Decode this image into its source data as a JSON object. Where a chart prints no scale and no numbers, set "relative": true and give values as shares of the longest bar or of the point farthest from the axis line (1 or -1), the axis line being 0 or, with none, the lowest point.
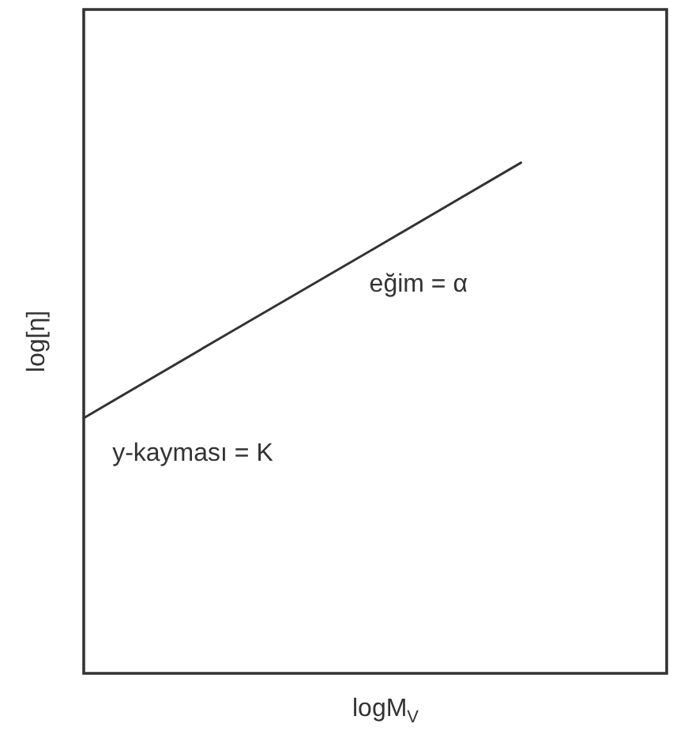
{
  "chart_data": {
    "type": "line",
    "xlabel": "logM$_{V}$",
    "ylabel": "log[η]",
    "categories": [
      null,
      null,
      null,
      null,
      null
    ],
    "values": [
      0.5,
      0.667,
      0.833,
      1,
      null
    ],
    "color": "#333333",
    "relative": true,
    "annotations": [
      "eğim = α",
      "y-kayması = K"
    ]
  }
}
